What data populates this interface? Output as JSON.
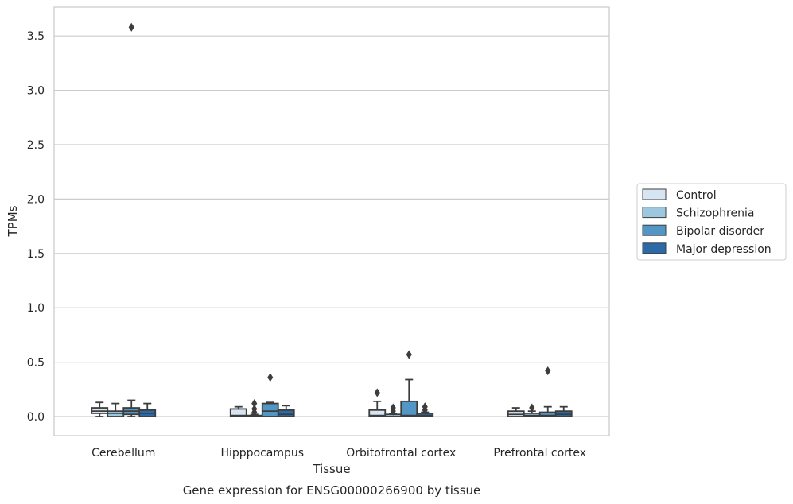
{
  "caption": "Gene expression for ENSG00000266900 by tissue",
  "colors": {
    "Control": "#d7e5f2",
    "Schizophrenia": "#9cc7df",
    "Bipolar disorder": "#5196c5",
    "Major depression": "#2b6aa7",
    "outline": "#3d3d3d",
    "grid": "#cccccc",
    "axes_frame": "#cccccc"
  },
  "chart_data": {
    "type": "box",
    "xlabel": "Tissue",
    "ylabel": "TPMs",
    "ylim": [
      -0.17,
      3.72
    ],
    "yticks": [
      0.0,
      0.5,
      1.0,
      1.5,
      2.0,
      2.5,
      3.0,
      3.5
    ],
    "ytick_labels": [
      "0.0",
      "0.5",
      "1.0",
      "1.5",
      "2.0",
      "2.5",
      "3.0",
      "3.5"
    ],
    "grid": "horizontal",
    "legend_position": "right",
    "categories": [
      "Cerebellum",
      "Hipppocampus",
      "Orbitofrontal cortex",
      "Prefrontal cortex"
    ],
    "series": [
      {
        "name": "Control",
        "boxes": [
          {
            "q1": 0.03,
            "median": 0.05,
            "q3": 0.08,
            "whisker_low": 0.0,
            "whisker_high": 0.13,
            "outliers": []
          },
          {
            "q1": 0.0,
            "median": 0.01,
            "q3": 0.07,
            "whisker_low": 0.0,
            "whisker_high": 0.09,
            "outliers": []
          },
          {
            "q1": 0.0,
            "median": 0.01,
            "q3": 0.06,
            "whisker_low": 0.0,
            "whisker_high": 0.14,
            "outliers": [
              0.22
            ]
          },
          {
            "q1": 0.0,
            "median": 0.02,
            "q3": 0.05,
            "whisker_low": 0.0,
            "whisker_high": 0.08,
            "outliers": []
          }
        ]
      },
      {
        "name": "Schizophrenia",
        "boxes": [
          {
            "q1": 0.0,
            "median": 0.03,
            "q3": 0.05,
            "whisker_low": 0.0,
            "whisker_high": 0.12,
            "outliers": []
          },
          {
            "q1": 0.0,
            "median": 0.0,
            "q3": 0.01,
            "whisker_low": 0.0,
            "whisker_high": 0.02,
            "outliers": [
              0.04,
              0.07,
              0.12
            ]
          },
          {
            "q1": 0.0,
            "median": 0.0,
            "q3": 0.02,
            "whisker_low": 0.0,
            "whisker_high": 0.03,
            "outliers": [
              0.05,
              0.08
            ]
          },
          {
            "q1": 0.0,
            "median": 0.01,
            "q3": 0.03,
            "whisker_low": 0.0,
            "whisker_high": 0.05,
            "outliers": [
              0.08
            ]
          }
        ]
      },
      {
        "name": "Bipolar disorder",
        "boxes": [
          {
            "q1": 0.02,
            "median": 0.05,
            "q3": 0.08,
            "whisker_low": 0.0,
            "whisker_high": 0.15,
            "outliers": [
              3.58
            ]
          },
          {
            "q1": 0.0,
            "median": 0.05,
            "q3": 0.12,
            "whisker_low": 0.0,
            "whisker_high": 0.13,
            "outliers": [
              0.36
            ]
          },
          {
            "q1": 0.0,
            "median": 0.01,
            "q3": 0.14,
            "whisker_low": 0.0,
            "whisker_high": 0.34,
            "outliers": [
              0.57
            ]
          },
          {
            "q1": 0.0,
            "median": 0.01,
            "q3": 0.04,
            "whisker_low": 0.0,
            "whisker_high": 0.09,
            "outliers": [
              0.42
            ]
          }
        ]
      },
      {
        "name": "Major depression",
        "boxes": [
          {
            "q1": 0.0,
            "median": 0.03,
            "q3": 0.06,
            "whisker_low": 0.0,
            "whisker_high": 0.12,
            "outliers": []
          },
          {
            "q1": 0.0,
            "median": 0.02,
            "q3": 0.06,
            "whisker_low": 0.0,
            "whisker_high": 0.1,
            "outliers": []
          },
          {
            "q1": 0.0,
            "median": 0.01,
            "q3": 0.03,
            "whisker_low": 0.0,
            "whisker_high": 0.04,
            "outliers": [
              0.06,
              0.09
            ]
          },
          {
            "q1": 0.0,
            "median": 0.02,
            "q3": 0.05,
            "whisker_low": 0.0,
            "whisker_high": 0.09,
            "outliers": []
          }
        ]
      }
    ]
  }
}
